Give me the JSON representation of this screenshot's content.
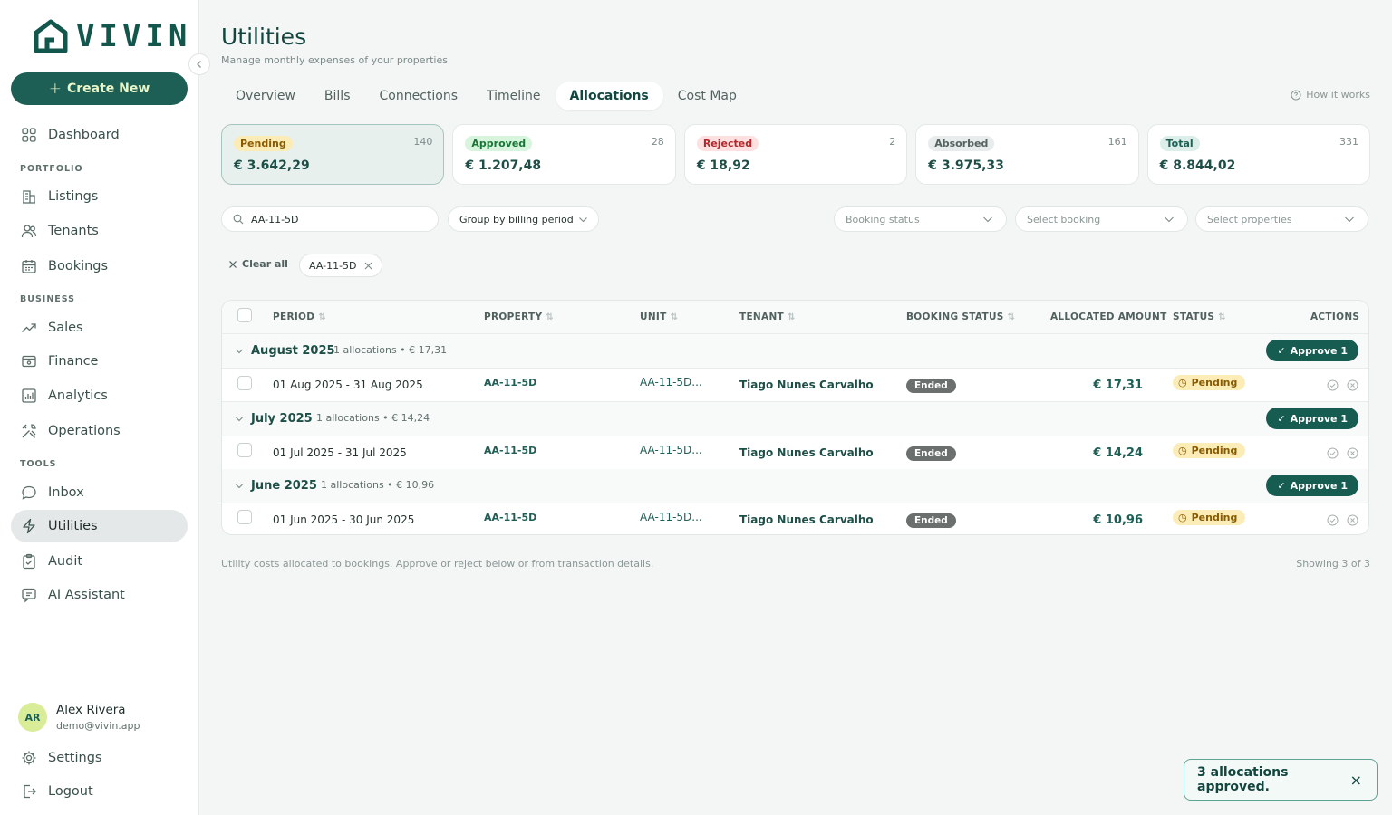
{
  "app": {
    "name": "vivin",
    "create_label": "Create New"
  },
  "sidebar": {
    "items": [
      {
        "label": "Dashboard",
        "icon": "grid-icon"
      },
      {
        "section": "PORTFOLIO"
      },
      {
        "label": "Listings",
        "icon": "building-icon"
      },
      {
        "label": "Tenants",
        "icon": "users-icon"
      },
      {
        "label": "Bookings",
        "icon": "calendar-icon"
      },
      {
        "section": "BUSINESS"
      },
      {
        "label": "Sales",
        "icon": "trend-icon"
      },
      {
        "label": "Finance",
        "icon": "wallet-icon"
      },
      {
        "label": "Analytics",
        "icon": "chart-icon"
      },
      {
        "label": "Operations",
        "icon": "tools-icon"
      },
      {
        "section": "TOOLS"
      },
      {
        "label": "Inbox",
        "icon": "chat-icon"
      },
      {
        "label": "Utilities",
        "icon": "bolt-icon",
        "active": true
      },
      {
        "label": "Audit",
        "icon": "clipboard-icon"
      },
      {
        "label": "AI Assistant",
        "icon": "ai-chat-icon"
      }
    ],
    "sections": {
      "portfolio": "PORTFOLIO",
      "business": "BUSINESS",
      "tools": "TOOLS"
    },
    "labels": {
      "dashboard": "Dashboard",
      "listings": "Listings",
      "tenants": "Tenants",
      "bookings": "Bookings",
      "sales": "Sales",
      "finance": "Finance",
      "analytics": "Analytics",
      "operations": "Operations",
      "inbox": "Inbox",
      "utilities": "Utilities",
      "audit": "Audit",
      "ai_assistant": "AI Assistant"
    },
    "user": {
      "initials": "AR",
      "name": "Alex Rivera",
      "email": "demo@vivin.app"
    },
    "settings": "Settings",
    "logout": "Logout"
  },
  "header": {
    "title": "Utilities",
    "subtitle": "Manage monthly expenses of your properties",
    "tabs": [
      "Overview",
      "Bills",
      "Connections",
      "Timeline",
      "Allocations",
      "Cost Map"
    ],
    "active_tab": "Allocations",
    "how_it_works": "How it works"
  },
  "summary": {
    "pending": {
      "label": "Pending",
      "count": "140",
      "amount": "€ 3.642,29"
    },
    "approved": {
      "label": "Approved",
      "count": "28",
      "amount": "€ 1.207,48"
    },
    "rejected": {
      "label": "Rejected",
      "count": "2",
      "amount": "€ 18,92"
    },
    "absorbed": {
      "label": "Absorbed",
      "count": "161",
      "amount": "€ 3.975,33"
    },
    "total": {
      "label": "Total",
      "count": "331",
      "amount": "€ 8.844,02"
    }
  },
  "filters": {
    "search_value": "AA-11-5D",
    "group_by": "Group by billing period",
    "booking_status_placeholder": "Booking status",
    "booking_placeholder": "Select booking",
    "properties_placeholder": "Select properties",
    "clear_all": "Clear all",
    "active_chip": "AA-11-5D"
  },
  "table": {
    "headers": {
      "period": "PERIOD",
      "property": "PROPERTY",
      "unit": "UNIT",
      "tenant": "TENANT",
      "booking_status": "BOOKING STATUS",
      "allocated_amount": "ALLOCATED AMOUNT",
      "status": "STATUS",
      "actions": "ACTIONS"
    },
    "groups": [
      {
        "name": "August 2025",
        "meta": "1 allocations • € 17,31",
        "approve": "Approve 1",
        "row": {
          "period": "01 Aug 2025 - 31 Aug 2025",
          "property": "AA-11-5D",
          "unit": "AA-11-5D...",
          "tenant": "Tiago Nunes Carvalho",
          "booking_status": "Ended",
          "amount": "€ 17,31",
          "status": "Pending"
        }
      },
      {
        "name": "July 2025",
        "meta": "1 allocations • € 14,24",
        "approve": "Approve 1",
        "row": {
          "period": "01 Jul 2025 - 31 Jul 2025",
          "property": "AA-11-5D",
          "unit": "AA-11-5D...",
          "tenant": "Tiago Nunes Carvalho",
          "booking_status": "Ended",
          "amount": "€ 14,24",
          "status": "Pending"
        }
      },
      {
        "name": "June 2025",
        "meta": "1 allocations • € 10,96",
        "approve": "Approve 1",
        "row": {
          "period": "01 Jun 2025 - 30 Jun 2025",
          "property": "AA-11-5D",
          "unit": "AA-11-5D...",
          "tenant": "Tiago Nunes Carvalho",
          "booking_status": "Ended",
          "amount": "€ 10,96",
          "status": "Pending"
        }
      }
    ]
  },
  "footer": {
    "note": "Utility costs allocated to bookings. Approve or reject below or from transaction details.",
    "showing": "Showing 3 of 3"
  },
  "toast": {
    "message": "3 allocations approved.",
    "close": "×"
  },
  "colors": {
    "brand": "#1d5f54",
    "pending_bg": "#fcedb8",
    "approved_bg": "#d7f5dd",
    "rejected_bg": "#fde1e1"
  }
}
